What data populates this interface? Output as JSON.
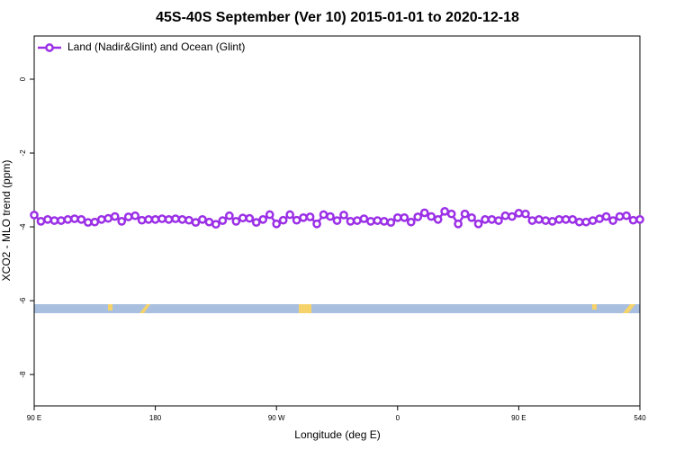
{
  "chart_data": {
    "type": "line",
    "title": "45S-40S September (Ver 10)   2015-01-01 to 2020-12-18",
    "xlabel": "Longitude (deg E)",
    "ylabel": "XCO2 - MLO trend (ppm)",
    "x": [
      90,
      95,
      100,
      105,
      110,
      115,
      120,
      125,
      130,
      135,
      140,
      145,
      150,
      155,
      160,
      165,
      170,
      175,
      180,
      185,
      190,
      195,
      200,
      205,
      210,
      215,
      220,
      225,
      230,
      235,
      240,
      245,
      250,
      255,
      260,
      265,
      270,
      275,
      280,
      285,
      290,
      295,
      300,
      305,
      310,
      315,
      320,
      325,
      330,
      335,
      340,
      345,
      350,
      355,
      360,
      365,
      370,
      375,
      380,
      385,
      390,
      395,
      400,
      405,
      410,
      415,
      420,
      425,
      430,
      435,
      440,
      445,
      450,
      455,
      460,
      465,
      470,
      475,
      480,
      485,
      490,
      495,
      500,
      505,
      510,
      515,
      520,
      525,
      530,
      535,
      540
    ],
    "series": [
      {
        "name": "Land (Nadir&Glint) and Ocean (Glint)",
        "color": "#9b30e6",
        "values": [
          -3.68,
          -3.85,
          -3.8,
          -3.83,
          -3.83,
          -3.8,
          -3.78,
          -3.8,
          -3.88,
          -3.87,
          -3.8,
          -3.77,
          -3.72,
          -3.85,
          -3.73,
          -3.7,
          -3.82,
          -3.8,
          -3.8,
          -3.78,
          -3.8,
          -3.78,
          -3.8,
          -3.82,
          -3.88,
          -3.8,
          -3.87,
          -3.93,
          -3.83,
          -3.7,
          -3.85,
          -3.76,
          -3.77,
          -3.88,
          -3.8,
          -3.67,
          -3.92,
          -3.82,
          -3.67,
          -3.82,
          -3.75,
          -3.73,
          -3.92,
          -3.67,
          -3.72,
          -3.83,
          -3.68,
          -3.85,
          -3.83,
          -3.78,
          -3.85,
          -3.83,
          -3.85,
          -3.88,
          -3.75,
          -3.75,
          -3.87,
          -3.73,
          -3.62,
          -3.72,
          -3.8,
          -3.58,
          -3.65,
          -3.92,
          -3.65,
          -3.75,
          -3.92,
          -3.8,
          -3.8,
          -3.83,
          -3.7,
          -3.72,
          -3.63,
          -3.65,
          -3.83,
          -3.8,
          -3.83,
          -3.85,
          -3.8,
          -3.8,
          -3.8,
          -3.87,
          -3.87,
          -3.83,
          -3.78,
          -3.72,
          -3.83,
          -3.72,
          -3.7,
          -3.82,
          -3.8
        ]
      }
    ],
    "xlim": [
      90,
      540
    ],
    "xticks": [
      {
        "value": 90,
        "label": "90 E"
      },
      180,
      {
        "value": 270,
        "label": "90 W"
      },
      {
        "value": 360,
        "label": "0"
      },
      {
        "value": 450,
        "label": "90 E"
      },
      540
    ],
    "ylim": [
      -8.85,
      1.17
    ],
    "yticks": [
      0,
      -2,
      -4,
      -6,
      -8
    ],
    "legend": "top-left"
  }
}
